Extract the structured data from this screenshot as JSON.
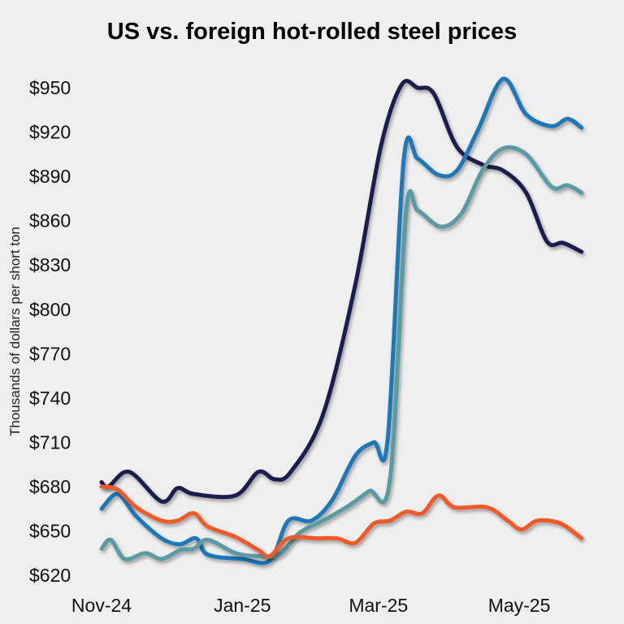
{
  "chart_data": {
    "type": "line",
    "title": "US vs. foreign hot-rolled steel prices",
    "xlabel": "",
    "ylabel": "Thousands of dollars per short ton",
    "ylim": [
      620,
      955
    ],
    "yticks": [
      620,
      650,
      680,
      710,
      740,
      770,
      800,
      830,
      860,
      890,
      920,
      950
    ],
    "ytick_labels": [
      "$620",
      "$650",
      "$680",
      "$710",
      "$740",
      "$770",
      "$800",
      "$830",
      "$860",
      "$890",
      "$920",
      "$950"
    ],
    "xlim": [
      "2024-11-01",
      "2025-05-28"
    ],
    "xticks": [
      "2024-11-01",
      "2025-01-01",
      "2025-03-01",
      "2025-05-01"
    ],
    "xtick_labels": [
      "Nov-24",
      "Jan-25",
      "Mar-25",
      "May-25"
    ],
    "grid": false,
    "legend": "none",
    "series": [
      {
        "color": "#1b1f4f",
        "points": [
          [
            "2024-11-01",
            683
          ],
          [
            "2024-11-04",
            680
          ],
          [
            "2024-11-13",
            690
          ],
          [
            "2024-11-27",
            670
          ],
          [
            "2024-12-04",
            679
          ],
          [
            "2024-12-11",
            675
          ],
          [
            "2024-12-29",
            674
          ],
          [
            "2025-01-08",
            690
          ],
          [
            "2025-01-15",
            685
          ],
          [
            "2025-01-22",
            690
          ],
          [
            "2025-02-05",
            729
          ],
          [
            "2025-02-19",
            817
          ],
          [
            "2025-03-02",
            910
          ],
          [
            "2025-03-11",
            952
          ],
          [
            "2025-03-18",
            950
          ],
          [
            "2025-03-25",
            946
          ],
          [
            "2025-04-04",
            910
          ],
          [
            "2025-04-15",
            898
          ],
          [
            "2025-04-24",
            894
          ],
          [
            "2025-05-04",
            879
          ],
          [
            "2025-05-13",
            846
          ],
          [
            "2025-05-20",
            845
          ],
          [
            "2025-05-28",
            839
          ]
        ]
      },
      {
        "color": "#1a78b8",
        "points": [
          [
            "2024-11-01",
            665
          ],
          [
            "2024-11-08",
            675
          ],
          [
            "2024-11-16",
            660
          ],
          [
            "2024-11-27",
            645
          ],
          [
            "2024-12-05",
            641
          ],
          [
            "2024-12-12",
            645
          ],
          [
            "2024-12-17",
            634
          ],
          [
            "2025-01-01",
            631
          ],
          [
            "2025-01-13",
            630
          ],
          [
            "2025-01-21",
            657
          ],
          [
            "2025-01-31",
            657
          ],
          [
            "2025-02-09",
            671
          ],
          [
            "2025-02-19",
            701
          ],
          [
            "2025-02-27",
            710
          ],
          [
            "2025-03-05",
            712
          ],
          [
            "2025-03-12",
            902
          ],
          [
            "2025-03-18",
            902
          ],
          [
            "2025-03-27",
            891
          ],
          [
            "2025-04-04",
            894
          ],
          [
            "2025-04-13",
            921
          ],
          [
            "2025-04-24",
            956
          ],
          [
            "2025-05-04",
            932
          ],
          [
            "2025-05-15",
            924
          ],
          [
            "2025-05-22",
            929
          ],
          [
            "2025-05-28",
            923
          ]
        ]
      },
      {
        "color": "#5a9aa3",
        "points": [
          [
            "2024-11-01",
            638
          ],
          [
            "2024-11-05",
            644
          ],
          [
            "2024-11-11",
            631
          ],
          [
            "2024-11-20",
            635
          ],
          [
            "2024-11-27",
            631
          ],
          [
            "2024-12-05",
            637
          ],
          [
            "2024-12-11",
            638
          ],
          [
            "2024-12-17",
            644
          ],
          [
            "2024-12-29",
            635
          ],
          [
            "2025-01-08",
            633
          ],
          [
            "2025-01-17",
            634
          ],
          [
            "2025-01-26",
            649
          ],
          [
            "2025-02-05",
            657
          ],
          [
            "2025-02-16",
            667
          ],
          [
            "2025-02-25",
            677
          ],
          [
            "2025-03-06",
            685
          ],
          [
            "2025-03-13",
            866
          ],
          [
            "2025-03-18",
            867
          ],
          [
            "2025-03-28",
            856
          ],
          [
            "2025-04-06",
            865
          ],
          [
            "2025-04-15",
            894
          ],
          [
            "2025-04-24",
            909
          ],
          [
            "2025-05-04",
            905
          ],
          [
            "2025-05-15",
            883
          ],
          [
            "2025-05-22",
            884
          ],
          [
            "2025-05-28",
            879
          ]
        ]
      },
      {
        "color": "#f05a2a",
        "points": [
          [
            "2024-11-01",
            680
          ],
          [
            "2024-11-08",
            678
          ],
          [
            "2024-11-16",
            666
          ],
          [
            "2024-11-27",
            657
          ],
          [
            "2024-12-04",
            657
          ],
          [
            "2024-12-11",
            662
          ],
          [
            "2024-12-17",
            653
          ],
          [
            "2024-12-29",
            646
          ],
          [
            "2025-01-08",
            637
          ],
          [
            "2025-01-13",
            633
          ],
          [
            "2025-01-21",
            645
          ],
          [
            "2025-02-02",
            645
          ],
          [
            "2025-02-11",
            645
          ],
          [
            "2025-02-19",
            642
          ],
          [
            "2025-02-27",
            655
          ],
          [
            "2025-03-06",
            657
          ],
          [
            "2025-03-13",
            663
          ],
          [
            "2025-03-20",
            662
          ],
          [
            "2025-03-27",
            674
          ],
          [
            "2025-04-03",
            666
          ],
          [
            "2025-04-17",
            666
          ],
          [
            "2025-04-26",
            657
          ],
          [
            "2025-05-02",
            651
          ],
          [
            "2025-05-09",
            657
          ],
          [
            "2025-05-19",
            655
          ],
          [
            "2025-05-28",
            645
          ]
        ]
      }
    ]
  }
}
